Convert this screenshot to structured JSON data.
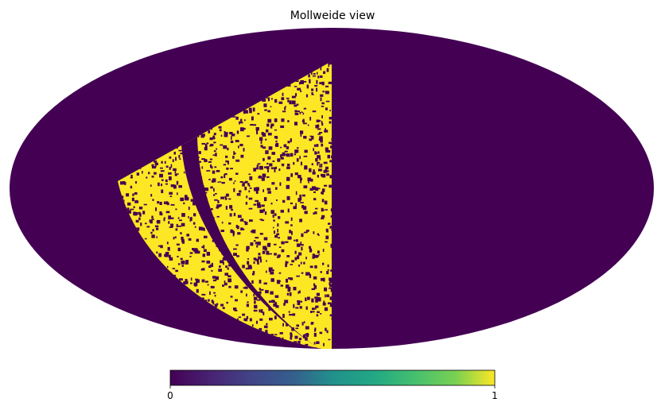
{
  "chart_data": {
    "type": "mollweide",
    "title": "Mollweide view",
    "clim": [
      0,
      1
    ],
    "cticks": [
      0,
      1
    ]
  }
}
